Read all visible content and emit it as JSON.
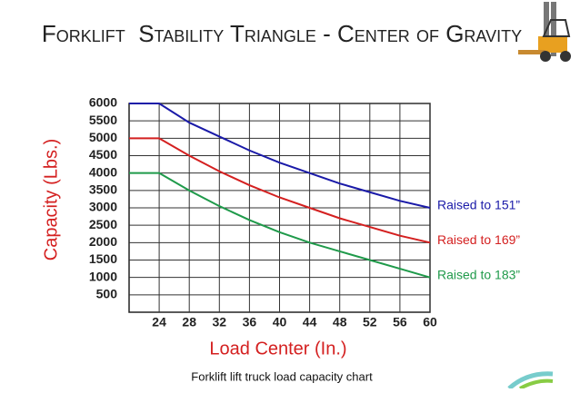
{
  "chart_data": {
    "type": "line",
    "title": "Forklift  Stability Triangle - Center of Gravity",
    "x_label": "Load Center (In.)",
    "y_label": "Capacity (Lbs.)",
    "caption": "Forklift lift truck load capacity chart",
    "x": [
      20,
      24,
      28,
      32,
      36,
      40,
      44,
      48,
      52,
      56,
      60
    ],
    "series": [
      {
        "name": "Raised to 151”",
        "color": "#1a1aa8",
        "values": [
          6000,
          6000,
          5450,
          5050,
          4650,
          4300,
          4000,
          3700,
          3450,
          3200,
          3000
        ]
      },
      {
        "name": "Raised to 169”",
        "color": "#d42020",
        "values": [
          5000,
          5000,
          4500,
          4050,
          3650,
          3300,
          3000,
          2700,
          2450,
          2200,
          2000
        ]
      },
      {
        "name": "Raised to 183”",
        "color": "#1f9a4a",
        "values": [
          4000,
          4000,
          3500,
          3050,
          2650,
          2300,
          2000,
          1750,
          1500,
          1250,
          1000
        ]
      }
    ],
    "xlim": [
      20,
      60
    ],
    "xticks": [
      24,
      28,
      32,
      36,
      40,
      44,
      48,
      52,
      56,
      60
    ],
    "ylim": [
      0,
      6000
    ],
    "yticks": [
      500,
      1000,
      1500,
      2000,
      2500,
      3000,
      3500,
      4000,
      4500,
      5000,
      5500,
      6000
    ],
    "grid": true
  }
}
